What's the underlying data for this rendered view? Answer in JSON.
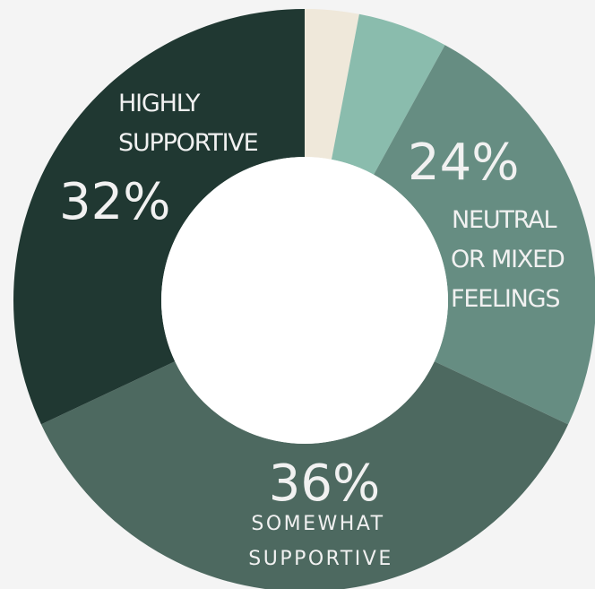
{
  "chart_data": {
    "type": "pie",
    "variant": "donut",
    "title": "",
    "series": [
      {
        "name": "",
        "values": [
          3,
          5,
          24,
          36,
          32
        ],
        "colors": [
          "#efe8da",
          "#8abcad",
          "#668d82",
          "#4d6960",
          "#203832"
        ]
      }
    ],
    "data_labels": [
      {
        "value": "",
        "label_lines": []
      },
      {
        "value": "",
        "label_lines": []
      },
      {
        "value": "24%",
        "label_lines": [
          "NEUTRAL",
          "OR MIXED",
          "FEELINGS"
        ]
      },
      {
        "value": "36%",
        "label_lines": [
          "SOMEWHAT",
          "SUPPORTIVE"
        ]
      },
      {
        "value": "32%",
        "label_lines": [
          "HIGHLY",
          "SUPPORTIVE"
        ]
      }
    ],
    "legend": "none"
  }
}
